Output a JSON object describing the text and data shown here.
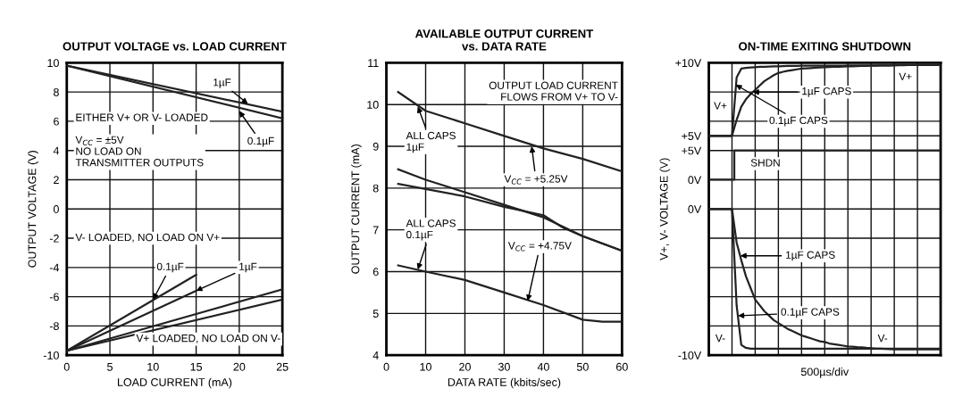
{
  "chart_data": [
    {
      "type": "line",
      "title": "OUTPUT VOLTAGE vs. LOAD CURRENT",
      "xlabel": "LOAD CURRENT (mA)",
      "ylabel": "OUTPUT VOLTAGE (V)",
      "xlim": [
        0,
        25
      ],
      "xticks": [
        0,
        5,
        10,
        15,
        20,
        25
      ],
      "ylim": [
        -10,
        10
      ],
      "yticks": [
        -10,
        -8,
        -6,
        -4,
        -2,
        0,
        2,
        4,
        6,
        8,
        10
      ],
      "grid": true,
      "series": [
        {
          "color": "#222222",
          "x": [
            0,
            25
          ],
          "values": [
            9.8,
            6.65
          ]
        },
        {
          "color": "#222222",
          "x": [
            0,
            25
          ],
          "values": [
            9.8,
            6.2
          ]
        },
        {
          "color": "#222222",
          "x": [
            0,
            15
          ],
          "values": [
            -9.7,
            -4.5
          ]
        },
        {
          "color": "#222222",
          "x": [
            0,
            15
          ],
          "values": [
            -9.7,
            -5.6
          ]
        },
        {
          "color": "#222222",
          "x": [
            0,
            25
          ],
          "values": [
            -9.7,
            -5.5
          ]
        },
        {
          "color": "#222222",
          "x": [
            0,
            25
          ],
          "values": [
            -9.7,
            -6.2
          ]
        }
      ],
      "annotations": [
        {
          "text": "1µF",
          "x": 21,
          "y": 7.2
        },
        {
          "text": "0.1µF",
          "x": 20,
          "y": 6.7
        },
        "EITHER V+ OR V- LOADED",
        "V$_{CC}$ = ±5V\nNO LOAD ON\nTRANSMITTER OUTPUTS",
        "V- LOADED, NO LOAD ON V+",
        {
          "text": "0.1µF",
          "x": 10,
          "y": -6.2
        },
        {
          "text": "1µF",
          "x": 15,
          "y": -5.6
        },
        "V+ LOADED, NO LOAD ON V-"
      ]
    },
    {
      "type": "line",
      "title": "AVAILABLE OUTPUT CURRENT\nvs. DATA RATE",
      "xlabel": "DATA RATE (kbits/sec)",
      "ylabel": "OUTPUT CURRENT (mA)",
      "xlim": [
        0,
        60
      ],
      "xticks": [
        0,
        10,
        20,
        30,
        40,
        50,
        60
      ],
      "ylim": [
        4,
        11
      ],
      "yticks": [
        4,
        5,
        6,
        7,
        8,
        9,
        10,
        11
      ],
      "grid": true,
      "series": [
        {
          "color": "#222222",
          "x": [
            3,
            10,
            20,
            30,
            40,
            50,
            60
          ],
          "values": [
            10.3,
            9.85,
            9.55,
            9.25,
            8.95,
            8.7,
            8.4
          ]
        },
        {
          "color": "#222222",
          "x": [
            3,
            10,
            20,
            30,
            40,
            50,
            60
          ],
          "values": [
            8.45,
            8.2,
            7.9,
            7.6,
            7.3,
            6.85,
            6.5
          ]
        },
        {
          "color": "#222222",
          "x": [
            3,
            10,
            20,
            30,
            40,
            45,
            50,
            60
          ],
          "values": [
            8.1,
            7.98,
            7.8,
            7.55,
            7.35,
            7.05,
            6.85,
            6.5
          ]
        },
        {
          "color": "#222222",
          "x": [
            3,
            10,
            20,
            30,
            40,
            50,
            55,
            60
          ],
          "values": [
            6.15,
            6.0,
            5.8,
            5.5,
            5.2,
            4.85,
            4.8,
            4.8
          ]
        }
      ],
      "annotations": [
        "OUTPUT LOAD CURRENT\nFLOWS FROM V+ TO V-",
        {
          "text": "ALL CAPS\n1µF",
          "x": 8,
          "y": 9.95
        },
        {
          "text": "ALL CAPS\n0.1µF",
          "x": 8,
          "y": 6.05
        },
        {
          "text": "V$_{CC}$ = +5.25V",
          "x": 37,
          "y": 9.0
        },
        {
          "text": "V$_{CC}$ = +4.75V",
          "x": 36,
          "y": 5.3
        }
      ]
    },
    {
      "type": "line",
      "title": "ON-TIME EXITING SHUTDOWN",
      "xlabel": "500µs/div",
      "ylabel": "V+, V- VOLTAGE (V)",
      "categories": [
        null,
        null,
        null,
        null,
        null,
        null,
        null,
        null,
        null,
        null,
        null,
        null,
        null,
        null,
        null,
        null,
        null,
        null,
        null,
        null,
        null,
        null,
        null,
        null,
        null,
        null,
        null,
        null,
        null,
        null,
        null,
        null,
        null,
        null,
        null,
        null,
        null,
        null,
        null,
        null,
        null,
        null,
        null,
        null,
        null,
        null,
        null,
        null,
        null,
        null,
        null
      ],
      "ylim": [
        -10,
        10
      ],
      "yticks": [
        {
          "value": -10,
          "label": "-10V"
        },
        {
          "value": -8,
          "label": null
        },
        {
          "value": -6,
          "label": null
        },
        {
          "value": -4,
          "label": null
        },
        {
          "value": -2,
          "label": null
        },
        {
          "value": 0,
          "label": "0V"
        },
        {
          "value": 2,
          "label": null
        },
        {
          "value": 4,
          "label": null
        },
        {
          "value": 5,
          "label": "+5V"
        },
        {
          "value": 6,
          "label": null
        },
        {
          "value": 8,
          "label": null
        },
        {
          "value": 10,
          "label": "+10V"
        }
      ],
      "y2lim": [
        -30,
        20
      ],
      "y2ticks": [
        {
          "value": 0,
          "label": "0V"
        },
        {
          "value": 5,
          "label": "+5V"
        }
      ],
      "grid": true,
      "tick_labels": "y",
      "series": [
        {
          "color": "#222222",
          "values": [
            5,
            5,
            5,
            5,
            5,
            5,
            9.0,
            9.6,
            9.65,
            9.68,
            9.7,
            9.72,
            9.73,
            9.74,
            9.75,
            9.76,
            9.77,
            9.78,
            9.78,
            9.79,
            9.8,
            9.8,
            9.8,
            9.8,
            9.8,
            9.8,
            9.8,
            9.8,
            9.8,
            9.8,
            9.82,
            9.82,
            9.82,
            9.82,
            9.82,
            9.82,
            9.82,
            9.82,
            9.82,
            9.82,
            9.85,
            9.85,
            9.85,
            9.85,
            9.85,
            9.85,
            9.85,
            9.85,
            9.85,
            9.85,
            9.85
          ]
        },
        {
          "color": "#222222",
          "values": [
            5,
            5,
            5,
            5,
            5,
            5,
            6.1,
            7.0,
            7.5,
            7.85,
            8.15,
            8.45,
            8.75,
            8.95,
            9.15,
            9.3,
            9.38,
            9.45,
            9.5,
            9.55,
            9.6,
            9.62,
            9.64,
            9.66,
            9.68,
            9.7,
            9.71,
            9.72,
            9.73,
            9.74,
            9.75,
            9.76,
            9.77,
            9.78,
            9.79,
            9.8,
            9.8,
            9.81,
            9.81,
            9.82,
            9.82,
            9.83,
            9.83,
            9.84,
            9.84,
            9.84,
            9.85,
            9.85,
            9.85,
            9.85,
            9.85
          ]
        },
        {
          "color": "#222222",
          "values": [
            0,
            0,
            0,
            0,
            0,
            0,
            -6.6,
            -9.3,
            -9.5,
            -9.55,
            -9.55,
            -9.55,
            -9.55,
            -9.55,
            -9.55,
            -9.55,
            -9.55,
            -9.55,
            -9.55,
            -9.55,
            -9.55,
            -9.55,
            -9.55,
            -9.55,
            -9.55,
            -9.55,
            -9.55,
            -9.55,
            -9.55,
            -9.55,
            -9.55,
            -9.55,
            -9.55,
            -9.55,
            -9.55,
            -9.55,
            -9.55,
            -9.55,
            -9.55,
            -9.55,
            -9.55,
            -9.55,
            -9.55,
            -9.55,
            -9.55,
            -9.55,
            -9.55,
            -9.55,
            -9.55,
            -9.55,
            -9.55
          ]
        },
        {
          "color": "#222222",
          "values": [
            0,
            0,
            0,
            0,
            0,
            0,
            -2.3,
            -3.5,
            -4.6,
            -5.4,
            -6.2,
            -6.6,
            -7.0,
            -7.3,
            -7.6,
            -7.8,
            -8.0,
            -8.2,
            -8.35,
            -8.5,
            -8.65,
            -8.75,
            -8.85,
            -8.95,
            -9.05,
            -9.1,
            -9.2,
            -9.25,
            -9.3,
            -9.35,
            -9.4,
            -9.42,
            -9.45,
            -9.47,
            -9.5,
            -9.52,
            -9.55,
            -9.55,
            -9.57,
            -9.58,
            -9.6,
            -9.6,
            -9.6,
            -9.6,
            -9.6,
            -9.6,
            -9.6,
            -9.6,
            -9.6,
            -9.6,
            -9.6
          ]
        },
        {
          "color": "#222222",
          "type": "step",
          "axis": "y2",
          "values": [
            0,
            0,
            0,
            0,
            0,
            0,
            5,
            5,
            5,
            5,
            5,
            5,
            5,
            5,
            5,
            5,
            5,
            5,
            5,
            5,
            5,
            5,
            5,
            5,
            5,
            5,
            5,
            5,
            5,
            5,
            5,
            5,
            5,
            5,
            5,
            5,
            5,
            5,
            5,
            5,
            5,
            5,
            5,
            5,
            5,
            5,
            5,
            5,
            5,
            5,
            5
          ]
        }
      ],
      "annotations": [
        "V+",
        "V+",
        "1µF CAPS",
        "0.1µF CAPS",
        "SHDN",
        "1µF CAPS",
        "0.1µF CAPS",
        "V-",
        "V-"
      ]
    }
  ]
}
